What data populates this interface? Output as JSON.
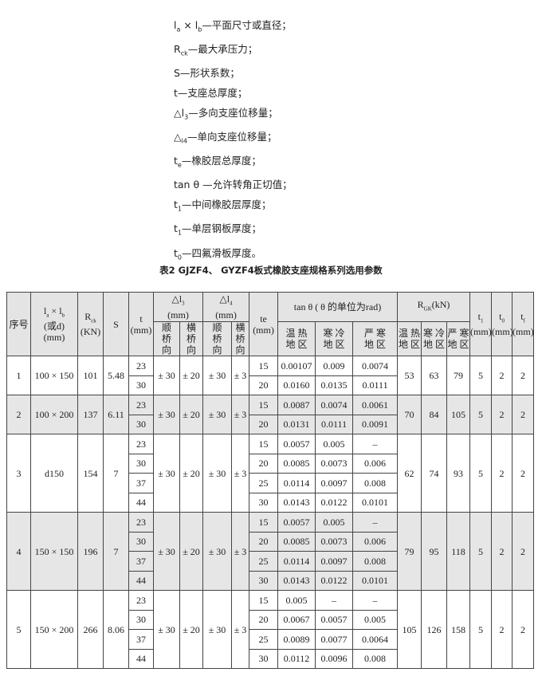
{
  "notes": [
    [
      [
        "l",
        0
      ],
      [
        "a",
        1
      ],
      [
        " × l",
        0
      ],
      [
        "b",
        1
      ],
      [
        "—平面尺寸或直径；",
        0
      ]
    ],
    [
      [
        "R",
        0
      ],
      [
        "ck",
        1
      ],
      [
        "—最大承压力；",
        0
      ]
    ],
    [
      [
        "S—形状系数；",
        0
      ]
    ],
    [
      [
        "t—支座总厚度；",
        0
      ]
    ],
    [
      [
        "△l",
        0
      ],
      [
        "3",
        1
      ],
      [
        "—多向支座位移量；",
        0
      ]
    ],
    [
      [
        "△",
        0
      ],
      [
        "l4",
        1
      ],
      [
        "—单向支座位移量；",
        0
      ]
    ],
    [
      [
        "t",
        0
      ],
      [
        "e",
        1
      ],
      [
        "—橡胶层总厚度；",
        0
      ]
    ],
    [
      [
        "tan θ —允许转角正切值；",
        0
      ]
    ],
    [
      [
        "t",
        0
      ],
      [
        "1",
        1
      ],
      [
        "—中间橡胶层厚度；",
        0
      ]
    ],
    [
      [
        "t",
        0
      ],
      [
        "1",
        1
      ],
      [
        "—单层钢板厚度；",
        0
      ]
    ],
    [
      [
        "t",
        0
      ],
      [
        "0",
        1
      ],
      [
        "—四氟滑板厚度。",
        0
      ]
    ]
  ],
  "table_title": "表2 GJZF4、 GYZF4板式橡胶支座规格系列选用参数",
  "header": {
    "no": [
      [
        "序号",
        0
      ]
    ],
    "size": [
      [
        "l",
        0
      ],
      [
        "a",
        1
      ],
      [
        " × l",
        0
      ],
      [
        "b",
        1
      ],
      [
        "\n(或d)\n(mm)",
        0
      ]
    ],
    "rck": [
      [
        "R",
        0
      ],
      [
        "ck",
        1
      ],
      [
        "\n(KN)",
        0
      ]
    ],
    "s": [
      [
        "S",
        0
      ]
    ],
    "t": [
      [
        "t\n(mm)",
        0
      ]
    ],
    "dl3": [
      [
        "△l",
        0
      ],
      [
        "3",
        1
      ],
      [
        "\n(mm)",
        0
      ]
    ],
    "dl4": [
      [
        "△l",
        0
      ],
      [
        "4",
        1
      ],
      [
        "\n(mm)",
        0
      ]
    ],
    "shun": [
      [
        "顺\n桥\n向",
        0
      ]
    ],
    "heng": [
      [
        "横\n桥\n向",
        0
      ]
    ],
    "te": [
      [
        "te\n(mm)",
        0
      ]
    ],
    "tan": [
      [
        "tan θ ( θ 的单位为rad)",
        0
      ]
    ],
    "tan_cols": [
      "温 热\n地 区",
      "寒 冷\n地 区",
      "严 寒\n地 区"
    ],
    "rgk": [
      [
        "R",
        0
      ],
      [
        "GK",
        1
      ],
      [
        "(kN)",
        0
      ]
    ],
    "rgk_cols": [
      "温 热\n地 区",
      "寒 冷\n地 区",
      "严 寒\n地 区"
    ],
    "t1": [
      [
        "t",
        0
      ],
      [
        "1",
        1
      ],
      [
        "\n(mm)",
        0
      ]
    ],
    "t0": [
      [
        "t",
        0
      ],
      [
        "0",
        1
      ],
      [
        "\n(mm)",
        0
      ]
    ],
    "tf": [
      [
        "t",
        0
      ],
      [
        "f",
        1
      ],
      [
        "\n(mm)",
        0
      ]
    ]
  },
  "rows": [
    {
      "no": "1",
      "size": "100 × 150",
      "rck": "101",
      "s": "5.48",
      "t": [
        "23",
        "30"
      ],
      "dl3": [
        "± 30",
        "± 20"
      ],
      "dl4": [
        "± 30",
        "± 3"
      ],
      "te": [
        "15",
        "20"
      ],
      "tan": [
        [
          "0.00107",
          "0.009",
          "0.0074"
        ],
        [
          "0.0160",
          "0.0135",
          "0.0111"
        ]
      ],
      "rgk": [
        "53",
        "63",
        "79"
      ],
      "t1": "5",
      "t0": "2",
      "tf": "2"
    },
    {
      "no": "2",
      "size": "100 × 200",
      "rck": "137",
      "s": "6.11",
      "t": [
        "23",
        "30"
      ],
      "dl3": [
        "± 30",
        "± 20"
      ],
      "dl4": [
        "± 30",
        "± 3"
      ],
      "te": [
        "15",
        "20"
      ],
      "tan": [
        [
          "0.0087",
          "0.0074",
          "0.0061"
        ],
        [
          "0.0131",
          "0.0111",
          "0.0091"
        ]
      ],
      "rgk": [
        "70",
        "84",
        "105"
      ],
      "t1": "5",
      "t0": "2",
      "tf": "2"
    },
    {
      "no": "3",
      "size": "d150",
      "rck": "154",
      "s": "7",
      "t": [
        "23",
        "30",
        "37",
        "44"
      ],
      "dl3": [
        "± 30",
        "± 20"
      ],
      "dl4": [
        "± 30",
        "± 3"
      ],
      "te": [
        "15",
        "20",
        "25",
        "30"
      ],
      "tan": [
        [
          "0.0057",
          "0.005",
          "–"
        ],
        [
          "0.0085",
          "0.0073",
          "0.006"
        ],
        [
          "0.0114",
          "0.0097",
          "0.008"
        ],
        [
          "0.0143",
          "0.0122",
          "0.0101"
        ]
      ],
      "rgk": [
        "62",
        "74",
        "93"
      ],
      "t1": "5",
      "t0": "2",
      "tf": "2"
    },
    {
      "no": "4",
      "size": "150 × 150",
      "rck": "196",
      "s": "7",
      "t": [
        "23",
        "30",
        "37",
        "44"
      ],
      "dl3": [
        "± 30",
        "± 20"
      ],
      "dl4": [
        "± 30",
        "± 3"
      ],
      "te": [
        "15",
        "20",
        "25",
        "30"
      ],
      "tan": [
        [
          "0.0057",
          "0.005",
          "–"
        ],
        [
          "0.0085",
          "0.0073",
          "0.006"
        ],
        [
          "0.0114",
          "0.0097",
          "0.008"
        ],
        [
          "0.0143",
          "0.0122",
          "0.0101"
        ]
      ],
      "rgk": [
        "79",
        "95",
        "118"
      ],
      "t1": "5",
      "t0": "2",
      "tf": "2"
    },
    {
      "no": "5",
      "size": "150 × 200",
      "rck": "266",
      "s": "8.06",
      "t": [
        "23",
        "30",
        "37",
        "44"
      ],
      "dl3": [
        "± 30",
        "± 20"
      ],
      "dl4": [
        "± 30",
        "± 3"
      ],
      "te": [
        "15",
        "20",
        "25",
        "30"
      ],
      "tan": [
        [
          "0.005",
          "–",
          "–"
        ],
        [
          "0.0067",
          "0.0057",
          "0.005"
        ],
        [
          "0.0089",
          "0.0077",
          "0.0064"
        ],
        [
          "0.0112",
          "0.0096",
          "0.008"
        ]
      ],
      "rgk": [
        "105",
        "126",
        "158"
      ],
      "t1": "5",
      "t0": "2",
      "tf": "2"
    }
  ],
  "shaded_rows": [
    "2",
    "4"
  ],
  "colors": {
    "header_bg": "#e4e4e4",
    "shade_bg": "#e6e6e6",
    "border": "#444444"
  }
}
